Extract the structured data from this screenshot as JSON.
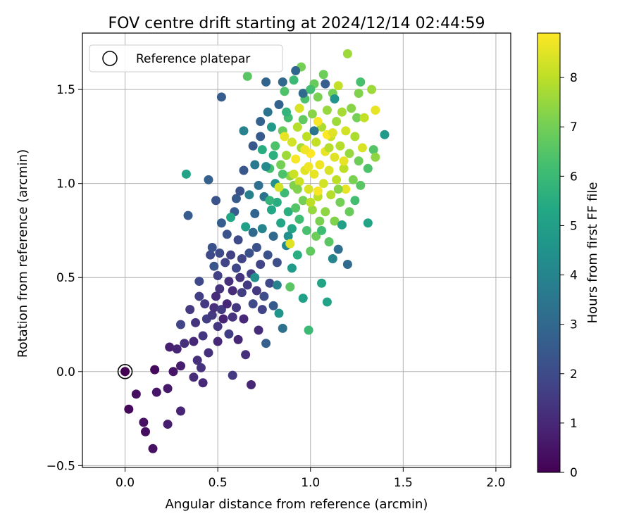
{
  "chart_data": {
    "type": "scatter",
    "title": "FOV centre drift starting at 2024/12/14 02:44:59",
    "xlabel": "Angular distance from reference (arcmin)",
    "ylabel": "Rotation from reference (arcmin)",
    "xlim": [
      -0.23,
      2.08
    ],
    "ylim": [
      -0.51,
      1.8
    ],
    "xticks": [
      0.0,
      0.5,
      1.0,
      1.5,
      2.0
    ],
    "xtick_labels": [
      "0.0",
      "0.5",
      "1.0",
      "1.5",
      "2.0"
    ],
    "yticks": [
      -0.5,
      0.0,
      0.5,
      1.0,
      1.5
    ],
    "ytick_labels": [
      "−0.5",
      "0.0",
      "0.5",
      "1.0",
      "1.5"
    ],
    "grid": true,
    "legend": {
      "position": "top-left",
      "entries": [
        {
          "label": "Reference platepar",
          "marker": "open-circle"
        }
      ]
    },
    "reference_point": {
      "x": 0.0,
      "y": 0.0
    },
    "colorbar": {
      "label": "Hours from first FF file",
      "colormap": "viridis",
      "range": [
        0,
        8.9
      ],
      "ticks": [
        0,
        1,
        2,
        3,
        4,
        5,
        6,
        7,
        8
      ],
      "tick_labels": [
        "0",
        "1",
        "2",
        "3",
        "4",
        "5",
        "6",
        "7",
        "8"
      ]
    },
    "series": [
      {
        "color_by": "hours",
        "points": [
          [
            0.0,
            0.0,
            0.0
          ],
          [
            0.02,
            -0.2,
            0.2
          ],
          [
            0.06,
            -0.12,
            0.3
          ],
          [
            0.1,
            -0.27,
            0.4
          ],
          [
            0.11,
            -0.32,
            0.3
          ],
          [
            0.15,
            -0.41,
            0.4
          ],
          [
            0.16,
            0.01,
            0.2
          ],
          [
            0.17,
            -0.11,
            0.5
          ],
          [
            0.23,
            -0.09,
            0.6
          ],
          [
            0.23,
            -0.28,
            0.7
          ],
          [
            0.24,
            0.13,
            0.8
          ],
          [
            0.26,
            0.0,
            0.5
          ],
          [
            0.28,
            0.12,
            0.9
          ],
          [
            0.3,
            0.03,
            0.7
          ],
          [
            0.3,
            0.25,
            1.8
          ],
          [
            0.3,
            -0.21,
            0.9
          ],
          [
            0.32,
            0.15,
            1.2
          ],
          [
            0.35,
            0.33,
            1.5
          ],
          [
            0.37,
            0.16,
            1.0
          ],
          [
            0.37,
            -0.03,
            1.1
          ],
          [
            0.38,
            0.26,
            1.3
          ],
          [
            0.39,
            0.06,
            1.2
          ],
          [
            0.4,
            0.4,
            1.6
          ],
          [
            0.4,
            0.48,
            1.9
          ],
          [
            0.41,
            0.02,
            1.3
          ],
          [
            0.42,
            -0.06,
            1.0
          ],
          [
            0.42,
            0.19,
            1.4
          ],
          [
            0.43,
            0.36,
            1.5
          ],
          [
            0.44,
            0.28,
            1.6
          ],
          [
            0.45,
            0.1,
            1.2
          ],
          [
            0.46,
            0.62,
            2.0
          ],
          [
            0.47,
            0.3,
            1.5
          ],
          [
            0.47,
            0.66,
            2.2
          ],
          [
            0.48,
            0.56,
            2.4
          ],
          [
            0.48,
            0.34,
            1.2
          ],
          [
            0.49,
            0.4,
            1.1
          ],
          [
            0.5,
            0.16,
            1.0
          ],
          [
            0.5,
            0.24,
            1.4
          ],
          [
            0.5,
            0.51,
            1.7
          ],
          [
            0.51,
            0.44,
            1.3
          ],
          [
            0.51,
            0.63,
            2.0
          ],
          [
            0.52,
            0.33,
            1.5
          ],
          [
            0.52,
            0.79,
            2.6
          ],
          [
            0.53,
            0.28,
            0.9
          ],
          [
            0.54,
            0.58,
            1.8
          ],
          [
            0.55,
            0.36,
            1.0
          ],
          [
            0.55,
            0.73,
            2.3
          ],
          [
            0.56,
            0.2,
            1.6
          ],
          [
            0.56,
            0.48,
            1.2
          ],
          [
            0.57,
            0.62,
            1.7
          ],
          [
            0.58,
            0.43,
            1.1
          ],
          [
            0.58,
            -0.02,
            1.5
          ],
          [
            0.59,
            0.85,
            2.6
          ],
          [
            0.6,
            0.55,
            1.9
          ],
          [
            0.6,
            0.34,
            1.4
          ],
          [
            0.61,
            0.17,
            1.0
          ],
          [
            0.61,
            0.7,
            2.0
          ],
          [
            0.62,
            0.96,
            2.2
          ],
          [
            0.62,
            0.5,
            1.3
          ],
          [
            0.63,
            0.42,
            1.6
          ],
          [
            0.63,
            0.6,
            1.8
          ],
          [
            0.64,
            1.07,
            2.4
          ],
          [
            0.64,
            0.28,
            1.0
          ],
          [
            0.65,
            0.77,
            5.0
          ],
          [
            0.65,
            0.09,
            1.2
          ],
          [
            0.66,
            1.57,
            6.6
          ],
          [
            0.66,
            0.46,
            1.5
          ],
          [
            0.67,
            0.63,
            2.2
          ],
          [
            0.67,
            0.94,
            3.8
          ],
          [
            0.68,
            -0.07,
            1.0
          ],
          [
            0.68,
            0.52,
            1.6
          ],
          [
            0.69,
            1.2,
            2.4
          ],
          [
            0.69,
            0.36,
            2.0
          ],
          [
            0.7,
            0.84,
            2.9
          ],
          [
            0.7,
            1.1,
            3.6
          ],
          [
            0.71,
            0.66,
            2.2
          ],
          [
            0.71,
            0.43,
            1.5
          ],
          [
            0.72,
            0.22,
            1.1
          ],
          [
            0.72,
            0.99,
            3.2
          ],
          [
            0.73,
            1.25,
            2.5
          ],
          [
            0.73,
            0.57,
            1.8
          ],
          [
            0.74,
            0.76,
            4.0
          ],
          [
            0.74,
            1.18,
            5.5
          ],
          [
            0.75,
            0.4,
            2.1
          ],
          [
            0.75,
            0.93,
            3.4
          ],
          [
            0.76,
            1.54,
            2.9
          ],
          [
            0.76,
            0.15,
            2.7
          ],
          [
            0.77,
            1.38,
            3.4
          ],
          [
            0.77,
            0.62,
            2.3
          ],
          [
            0.78,
            1.08,
            6.2
          ],
          [
            0.78,
            0.47,
            1.9
          ],
          [
            0.79,
            0.86,
            5.3
          ],
          [
            0.79,
            1.3,
            4.8
          ],
          [
            0.8,
            0.72,
            3.0
          ],
          [
            0.8,
            0.35,
            2.5
          ],
          [
            0.81,
            1.0,
            4.5
          ],
          [
            0.81,
            1.2,
            6.4
          ],
          [
            0.82,
            0.58,
            2.1
          ],
          [
            0.82,
            0.9,
            5.5
          ],
          [
            0.83,
            1.42,
            2.8
          ],
          [
            0.83,
            0.31,
            4.6
          ],
          [
            0.84,
            1.1,
            7.0
          ],
          [
            0.84,
            0.79,
            5.2
          ],
          [
            0.85,
            1.28,
            6.8
          ],
          [
            0.85,
            0.23,
            3.3
          ],
          [
            0.86,
            0.95,
            6.0
          ],
          [
            0.86,
            1.49,
            6.4
          ],
          [
            0.87,
            0.67,
            4.1
          ],
          [
            0.87,
            1.15,
            7.6
          ],
          [
            0.88,
            0.85,
            5.6
          ],
          [
            0.88,
            1.35,
            6.2
          ],
          [
            0.89,
            1.04,
            7.4
          ],
          [
            0.89,
            0.45,
            6.6
          ],
          [
            0.9,
            0.76,
            5.2
          ],
          [
            0.9,
            1.22,
            8.3
          ],
          [
            0.91,
            0.99,
            7.2
          ],
          [
            0.91,
            1.55,
            6.0
          ],
          [
            0.92,
            0.87,
            6.5
          ],
          [
            0.92,
            1.13,
            8.8
          ],
          [
            0.93,
            0.62,
            5.5
          ],
          [
            0.93,
            1.3,
            7.9
          ],
          [
            0.94,
            1.01,
            8.2
          ],
          [
            0.94,
            0.81,
            6.1
          ],
          [
            0.95,
            1.19,
            7.7
          ],
          [
            0.95,
            1.62,
            7.0
          ],
          [
            0.96,
            0.91,
            7.0
          ],
          [
            0.96,
            0.39,
            5.0
          ],
          [
            0.97,
            1.07,
            8.5
          ],
          [
            0.97,
            1.45,
            6.4
          ],
          [
            0.98,
            0.75,
            6.3
          ],
          [
            0.98,
            1.25,
            8.0
          ],
          [
            0.99,
            0.22,
            6.0
          ],
          [
            0.99,
            0.97,
            8.4
          ],
          [
            1.0,
            0.64,
            6.7
          ],
          [
            1.0,
            1.16,
            8.9
          ],
          [
            1.01,
            1.37,
            7.3
          ],
          [
            1.01,
            0.86,
            7.5
          ],
          [
            1.02,
            1.05,
            8.6
          ],
          [
            1.02,
            1.53,
            6.8
          ],
          [
            1.03,
            0.72,
            6.9
          ],
          [
            1.03,
            1.22,
            8.1
          ],
          [
            1.04,
            0.93,
            8.0
          ],
          [
            1.04,
            1.46,
            7.1
          ],
          [
            1.05,
            1.1,
            8.7
          ],
          [
            1.05,
            0.8,
            7.1
          ],
          [
            1.06,
            1.3,
            7.8
          ],
          [
            1.06,
            0.47,
            5.2
          ],
          [
            1.07,
            1.0,
            8.3
          ],
          [
            1.07,
            1.58,
            6.9
          ],
          [
            1.08,
            0.85,
            7.4
          ],
          [
            1.08,
            1.17,
            8.6
          ],
          [
            1.09,
            1.39,
            7.5
          ],
          [
            1.09,
            0.37,
            5.1
          ],
          [
            1.1,
            1.07,
            8.4
          ],
          [
            1.1,
            0.69,
            6.6
          ],
          [
            1.11,
            1.25,
            8.2
          ],
          [
            1.11,
            0.94,
            7.9
          ],
          [
            1.12,
            1.48,
            7.0
          ],
          [
            1.12,
            0.6,
            4.0
          ],
          [
            1.13,
            1.14,
            8.5
          ],
          [
            1.13,
            0.8,
            7.2
          ],
          [
            1.14,
            1.33,
            7.6
          ],
          [
            1.14,
            1.02,
            8.0
          ],
          [
            1.15,
            0.65,
            3.2
          ],
          [
            1.15,
            1.52,
            8.1
          ],
          [
            1.16,
            1.2,
            7.9
          ],
          [
            1.16,
            0.9,
            7.0
          ],
          [
            1.17,
            1.38,
            7.7
          ],
          [
            1.17,
            0.78,
            5.0
          ],
          [
            1.18,
            1.08,
            8.0
          ],
          [
            1.19,
            1.28,
            8.3
          ],
          [
            1.19,
            0.97,
            8.6
          ],
          [
            1.2,
            1.69,
            7.6
          ],
          [
            1.2,
            0.57,
            3.1
          ],
          [
            1.21,
            1.16,
            7.5
          ],
          [
            1.21,
            0.85,
            6.8
          ],
          [
            1.22,
            1.4,
            7.3
          ],
          [
            1.23,
            1.02,
            7.1
          ],
          [
            1.24,
            1.25,
            7.8
          ],
          [
            1.24,
            0.91,
            6.2
          ],
          [
            1.25,
            1.35,
            7.0
          ],
          [
            1.26,
            1.48,
            7.2
          ],
          [
            1.26,
            1.12,
            6.9
          ],
          [
            1.27,
            1.54,
            6.3
          ],
          [
            1.27,
            0.99,
            6.6
          ],
          [
            1.28,
            1.19,
            8.4
          ],
          [
            1.29,
            1.35,
            8.1
          ],
          [
            1.31,
            0.79,
            5.2
          ],
          [
            1.31,
            1.08,
            6.4
          ],
          [
            1.33,
            1.5,
            7.6
          ],
          [
            1.34,
            1.18,
            6.5
          ],
          [
            1.35,
            1.14,
            7.4
          ],
          [
            1.35,
            1.39,
            8.6
          ],
          [
            1.4,
            1.26,
            4.8
          ],
          [
            0.33,
            1.05,
            5.1
          ],
          [
            0.34,
            0.83,
            2.6
          ],
          [
            0.45,
            1.02,
            2.7
          ],
          [
            0.49,
            0.91,
            2.3
          ],
          [
            0.52,
            1.46,
            2.6
          ],
          [
            0.73,
            1.33,
            2.8
          ],
          [
            0.85,
            1.54,
            3.0
          ],
          [
            0.92,
            1.6,
            2.9
          ],
          [
            0.96,
            1.48,
            3.1
          ],
          [
            1.02,
            1.28,
            3.5
          ],
          [
            1.08,
            1.53,
            2.6
          ],
          [
            1.13,
            1.45,
            4.6
          ],
          [
            0.76,
            1.09,
            4.2
          ],
          [
            0.88,
            0.72,
            4.4
          ],
          [
            0.82,
            0.46,
            3.9
          ],
          [
            0.69,
            0.74,
            3.0
          ],
          [
            0.6,
            0.92,
            2.5
          ],
          [
            0.57,
            0.82,
            5.3
          ],
          [
            0.64,
            1.28,
            3.9
          ],
          [
            0.74,
            0.33,
            1.8
          ],
          [
            0.58,
            0.29,
            1.3
          ],
          [
            0.7,
            0.5,
            4.4
          ],
          [
            0.78,
            0.91,
            5.8
          ],
          [
            0.85,
            1.05,
            6.4
          ],
          [
            0.9,
            0.55,
            4.8
          ],
          [
            0.96,
            1.34,
            6.7
          ],
          [
            1.0,
            1.5,
            6.2
          ],
          [
            1.06,
            0.75,
            6.1
          ],
          [
            1.1,
            1.19,
            7.9
          ],
          [
            1.15,
            0.97,
            7.3
          ],
          [
            0.8,
            1.15,
            5.6
          ],
          [
            0.87,
            1.38,
            5.8
          ],
          [
            0.93,
            0.97,
            7.2
          ],
          [
            0.99,
            1.09,
            8.7
          ],
          [
            1.04,
            1.33,
            8.8
          ],
          [
            1.09,
            1.26,
            8.9
          ],
          [
            0.86,
            1.25,
            8.6
          ],
          [
            0.91,
            1.05,
            8.2
          ],
          [
            0.97,
            1.18,
            8.7
          ],
          [
            0.83,
            0.98,
            8.3
          ],
          [
            1.04,
            0.96,
            8.8
          ],
          [
            1.12,
            1.27,
            8.5
          ],
          [
            0.94,
            1.4,
            8.4
          ],
          [
            1.0,
            0.9,
            8.0
          ],
          [
            0.89,
            0.68,
            8.5
          ],
          [
            1.18,
            1.12,
            8.6
          ]
        ]
      }
    ]
  }
}
